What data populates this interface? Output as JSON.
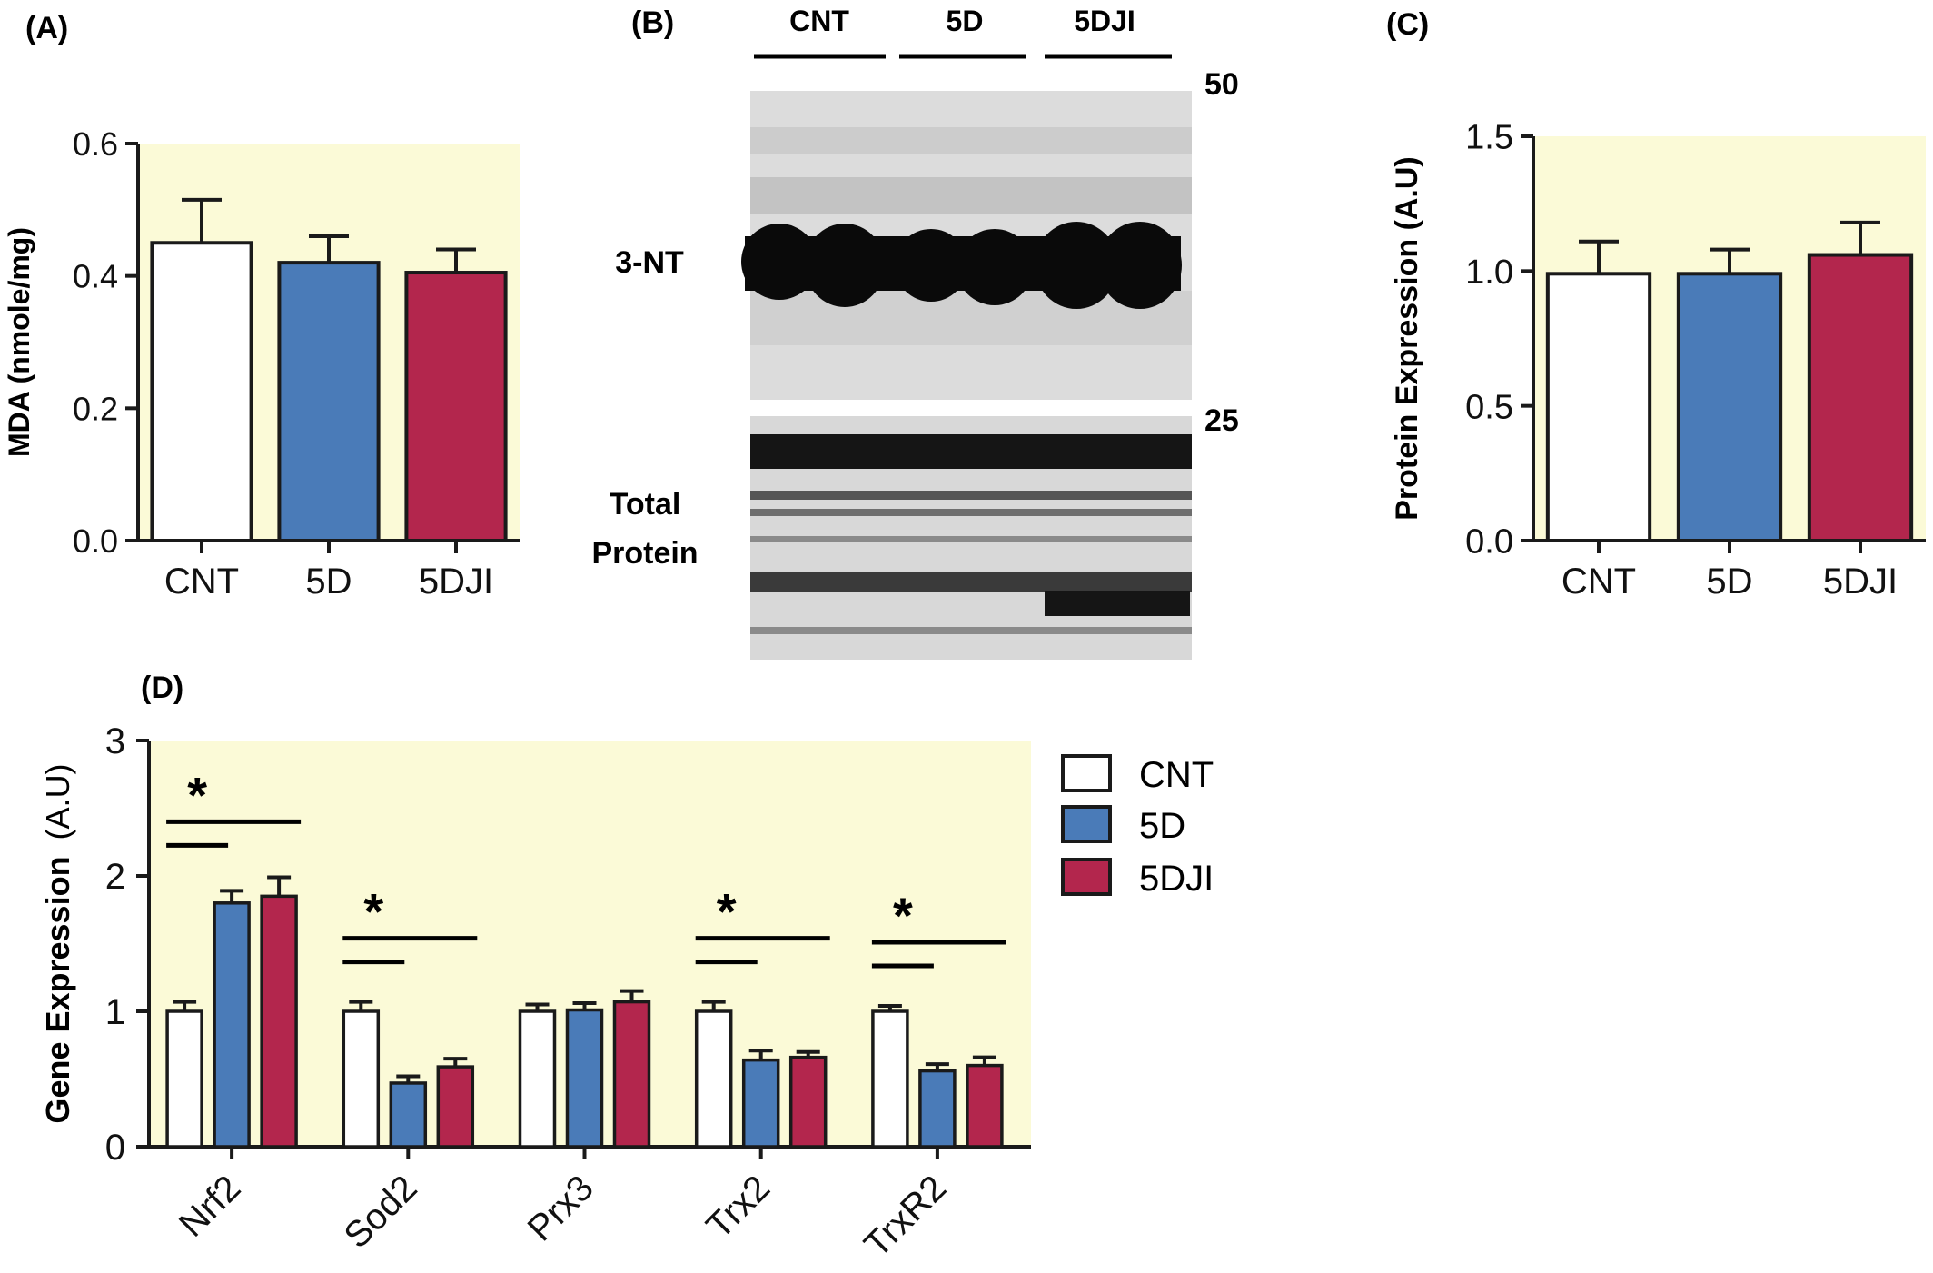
{
  "colors": {
    "cnt": "#ffffff",
    "d5": "#4a7bb8",
    "dji": "#b3264d",
    "panel_bg": "#fbfad7",
    "axis": "#1a1a1a"
  },
  "panels": {
    "a": {
      "label": "(A)"
    },
    "b": {
      "label": "(B)",
      "lanes": [
        "CNT",
        "5D",
        "5DJI"
      ],
      "marker_top": "50",
      "marker_mid": "25",
      "band_top": "3-NT",
      "band_bottom_line1": "Total",
      "band_bottom_line2": "Protein"
    },
    "c": {
      "label": "(C)"
    },
    "d": {
      "label": "(D)",
      "legend": [
        "CNT",
        "5D",
        "5DJI"
      ],
      "sig": "*"
    }
  },
  "chart_data": [
    {
      "id": "A",
      "type": "bar",
      "categories": [
        "CNT",
        "5D",
        "5DJI"
      ],
      "values": [
        0.45,
        0.42,
        0.405
      ],
      "errors": [
        0.065,
        0.04,
        0.035
      ],
      "ylabel": "MDA (nmole/mg)",
      "ylim": [
        0,
        0.6
      ],
      "yticks": [
        "0.0",
        "0.2",
        "0.4",
        "0.6"
      ]
    },
    {
      "id": "C",
      "type": "bar",
      "categories": [
        "CNT",
        "5D",
        "5DJI"
      ],
      "values": [
        0.99,
        0.99,
        1.06
      ],
      "errors": [
        0.12,
        0.09,
        0.12
      ],
      "ylabel": "Protein Expression  (A.U)",
      "ylim": [
        0,
        1.5
      ],
      "yticks": [
        "0.0",
        "0.5",
        "1.0",
        "1.5"
      ]
    },
    {
      "id": "D",
      "type": "bar",
      "categories": [
        "Nrf2",
        "Sod2",
        "Prx3",
        "Trx2",
        "TrxR2"
      ],
      "series": [
        {
          "name": "CNT",
          "values": [
            1.0,
            1.0,
            1.0,
            1.0,
            1.0
          ],
          "errors": [
            0.07,
            0.07,
            0.05,
            0.07,
            0.04
          ]
        },
        {
          "name": "5D",
          "values": [
            1.8,
            0.47,
            1.01,
            0.64,
            0.56
          ],
          "errors": [
            0.09,
            0.05,
            0.05,
            0.07,
            0.05
          ]
        },
        {
          "name": "5DJI",
          "values": [
            1.85,
            0.59,
            1.07,
            0.66,
            0.6
          ],
          "errors": [
            0.14,
            0.06,
            0.08,
            0.04,
            0.06
          ]
        }
      ],
      "ylabel_bold": "Gene Expression",
      "ylabel_unit": "(A.U)",
      "ylim": [
        0,
        3
      ],
      "yticks": [
        "0",
        "1",
        "2",
        "3"
      ],
      "significant": [
        "Nrf2",
        "Sod2",
        "Trx2",
        "TrxR2"
      ]
    }
  ]
}
